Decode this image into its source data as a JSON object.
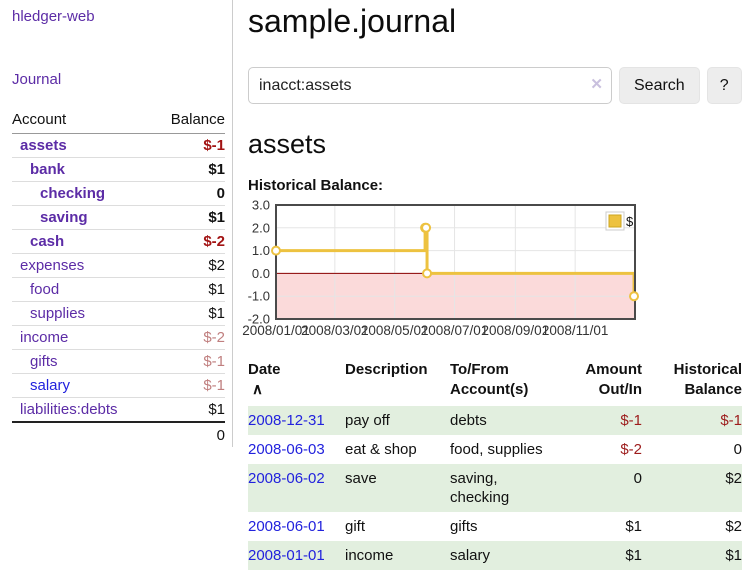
{
  "colors": {
    "link_purple": "#5c2ca6",
    "link_blue": "#2222dd",
    "negative_strong": "#a21313",
    "negative_weak": "#c07f7f",
    "register_negative": "#9d1c1c",
    "row_stripe_green": "#e2efdf",
    "chart_line": "#EDC240",
    "chart_negative_fill": "#fbdada",
    "chart_zero_line": "#8b0000",
    "chart_grid": "#e5e5e5",
    "chart_border": "#4a4a4a"
  },
  "sidebar": {
    "app_title": "hledger-web",
    "nav": [
      {
        "label": "Journal"
      }
    ],
    "accounts_table": {
      "headers": {
        "account": "Account",
        "balance": "Balance"
      },
      "rows": [
        {
          "account": "assets",
          "balance": "$-1",
          "indent": 1,
          "bold": true,
          "balance_tone": "neg-strong",
          "link_tone": "purple"
        },
        {
          "account": "bank",
          "balance": "$1",
          "indent": 2,
          "bold": true,
          "balance_tone": "",
          "link_tone": "purple"
        },
        {
          "account": "checking",
          "balance": "0",
          "indent": 3,
          "bold": true,
          "balance_tone": "",
          "link_tone": "purple"
        },
        {
          "account": "saving",
          "balance": "$1",
          "indent": 3,
          "bold": true,
          "balance_tone": "",
          "link_tone": "purple"
        },
        {
          "account": "cash",
          "balance": "$-2",
          "indent": 2,
          "bold": true,
          "balance_tone": "neg-strong",
          "link_tone": "purple"
        },
        {
          "account": "expenses",
          "balance": "$2",
          "indent": 1,
          "bold": false,
          "balance_tone": "",
          "link_tone": "purple"
        },
        {
          "account": "food",
          "balance": "$1",
          "indent": 2,
          "bold": false,
          "balance_tone": "",
          "link_tone": "purple"
        },
        {
          "account": "supplies",
          "balance": "$1",
          "indent": 2,
          "bold": false,
          "balance_tone": "",
          "link_tone": "purple"
        },
        {
          "account": "income",
          "balance": "$-2",
          "indent": 1,
          "bold": false,
          "balance_tone": "neg-weak",
          "link_tone": "purple"
        },
        {
          "account": "gifts",
          "balance": "$-1",
          "indent": 2,
          "bold": false,
          "balance_tone": "neg-weak",
          "link_tone": "purple"
        },
        {
          "account": "salary",
          "balance": "$-1",
          "indent": 2,
          "bold": false,
          "balance_tone": "neg-weak",
          "link_tone": "blue"
        },
        {
          "account": "liabilities:debts",
          "balance": "$1",
          "indent": 1,
          "bold": false,
          "balance_tone": "",
          "link_tone": "purple"
        }
      ],
      "total": "0"
    }
  },
  "header": {
    "title": "sample.journal"
  },
  "search": {
    "value": "inacct:assets",
    "clear_icon": "✕",
    "button_label": "Search",
    "help_label": "?"
  },
  "account_page": {
    "heading": "assets",
    "chart_label": "Historical Balance:"
  },
  "chart_data": {
    "type": "line",
    "subtype": "step",
    "title": "Historical Balance:",
    "series": [
      {
        "name": "$",
        "points": [
          [
            "2008-01-01",
            1
          ],
          [
            "2008-06-01",
            2
          ],
          [
            "2008-06-02",
            2
          ],
          [
            "2008-06-03",
            0
          ],
          [
            "2008-12-31",
            -1
          ]
        ]
      }
    ],
    "xlim": [
      "2008-01-01",
      "2009-01-01"
    ],
    "xticks": [
      {
        "at": "2008-01-01",
        "label": "2008/01/01"
      },
      {
        "at": "2008-03-01",
        "label": "2008/03/01"
      },
      {
        "at": "2008-05-01",
        "label": "2008/05/01"
      },
      {
        "at": "2008-07-01",
        "label": "2008/07/01"
      },
      {
        "at": "2008-09-01",
        "label": "2008/09/01"
      },
      {
        "at": "2008-11-01",
        "label": "2008/11/01"
      }
    ],
    "yticks": [
      "3.0",
      "2.0",
      "1.0",
      "0.0",
      "-1.0",
      "-2.0"
    ],
    "ylim": [
      -2,
      3
    ],
    "grid": true,
    "legend": {
      "label": "$",
      "position": "top-right"
    },
    "negative_region_shaded": true
  },
  "register": {
    "headers": {
      "date": "Date",
      "sort_icon": "∧",
      "description": "Description",
      "accounts_line1": "To/From",
      "accounts_line2": "Account(s)",
      "amount_line1": "Amount",
      "amount_line2": "Out/In",
      "balance_line1": "Historical",
      "balance_line2": "Balance"
    },
    "rows": [
      {
        "date": "2008-12-31",
        "description": "pay off",
        "accounts": "debts",
        "amount": "$-1",
        "balance": "$-1",
        "amount_tone": "neg",
        "balance_tone": "neg"
      },
      {
        "date": "2008-06-03",
        "description": "eat & shop",
        "accounts": "food, supplies",
        "amount": "$-2",
        "balance": "0",
        "amount_tone": "neg",
        "balance_tone": ""
      },
      {
        "date": "2008-06-02",
        "description": "save",
        "accounts": "saving, checking",
        "amount": "0",
        "balance": "$2",
        "amount_tone": "",
        "balance_tone": ""
      },
      {
        "date": "2008-06-01",
        "description": "gift",
        "accounts": "gifts",
        "amount": "$1",
        "balance": "$2",
        "amount_tone": "",
        "balance_tone": ""
      },
      {
        "date": "2008-01-01",
        "description": "income",
        "accounts": "salary",
        "amount": "$1",
        "balance": "$1",
        "amount_tone": "",
        "balance_tone": ""
      }
    ]
  }
}
